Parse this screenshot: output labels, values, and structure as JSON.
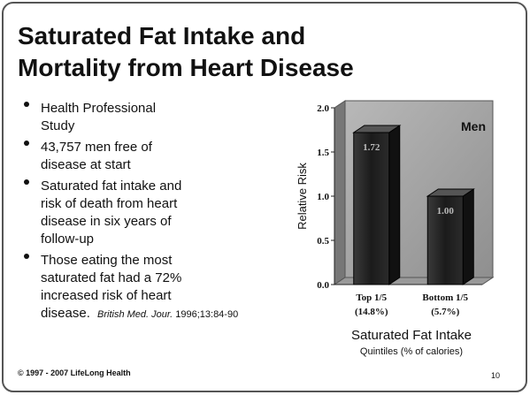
{
  "title": [
    "Saturated Fat Intake and",
    "Mortality from Heart Disease"
  ],
  "bullets": [
    [
      "Health Professional",
      "Study"
    ],
    [
      "43,757 men free of",
      "disease at start"
    ],
    [
      "Saturated fat intake and",
      "risk of death from heart",
      "disease in six years of",
      "follow-up"
    ],
    [
      "Those eating the most",
      "saturated fat had a 72%",
      "increased risk of heart",
      "disease."
    ]
  ],
  "citation": {
    "journal": "British Med. Jour.",
    "details": "1996;13:84-90"
  },
  "footer": "© 1997 - 2007 LifeLong Health",
  "page_number": "10",
  "chart_data": {
    "type": "bar",
    "categories": [
      "Top 1/5",
      "Bottom 1/5"
    ],
    "category_sublabels": [
      "(14.8%)",
      "(5.7%)"
    ],
    "series": [
      {
        "name": "Men",
        "color": "#232323",
        "values": [
          1.72,
          1.0
        ],
        "value_labels": [
          "1.72",
          "1.00"
        ]
      }
    ],
    "y_label": "Relative Risk",
    "x_label": "Saturated Fat Intake",
    "x_sublabel": "Quintiles (% of calories)",
    "ylim": [
      0,
      2
    ],
    "yticks": [
      {
        "value": 0,
        "label": "0.0"
      },
      {
        "value": 0.5,
        "label": "0.5"
      },
      {
        "value": 1,
        "label": "1.0"
      },
      {
        "value": 1.5,
        "label": "1.5"
      },
      {
        "value": 2,
        "label": "2.0"
      }
    ],
    "legend": "top-right"
  }
}
